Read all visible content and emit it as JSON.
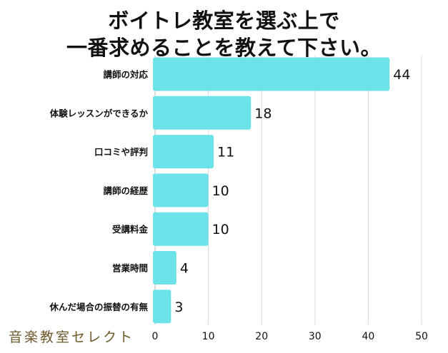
{
  "title_lines": [
    "ボイトレ教室を選ぶ上で",
    "一番求めることを教えて下さい。"
  ],
  "watermark": "音楽教室セレクト",
  "colors": {
    "bar": "#6be3e8",
    "grid": "#d9d9d9",
    "axis": "#bbbbbb",
    "text": "#111111"
  },
  "chart_data": {
    "type": "bar",
    "orientation": "horizontal",
    "categories": [
      "講師の対応",
      "体験レッスンができるか",
      "口コミや評判",
      "講師の経歴",
      "受講料金",
      "営業時間",
      "休んだ場合の振替の有無"
    ],
    "values": [
      44,
      18,
      11,
      10,
      10,
      4,
      3
    ],
    "xlim": [
      0,
      50
    ],
    "xticks": [
      0,
      10,
      20,
      30,
      40,
      50
    ],
    "grid": true,
    "data_labels": true,
    "title": "ボイトレ教室を選ぶ上で 一番求めることを教えて下さい。",
    "xlabel": "",
    "ylabel": ""
  }
}
